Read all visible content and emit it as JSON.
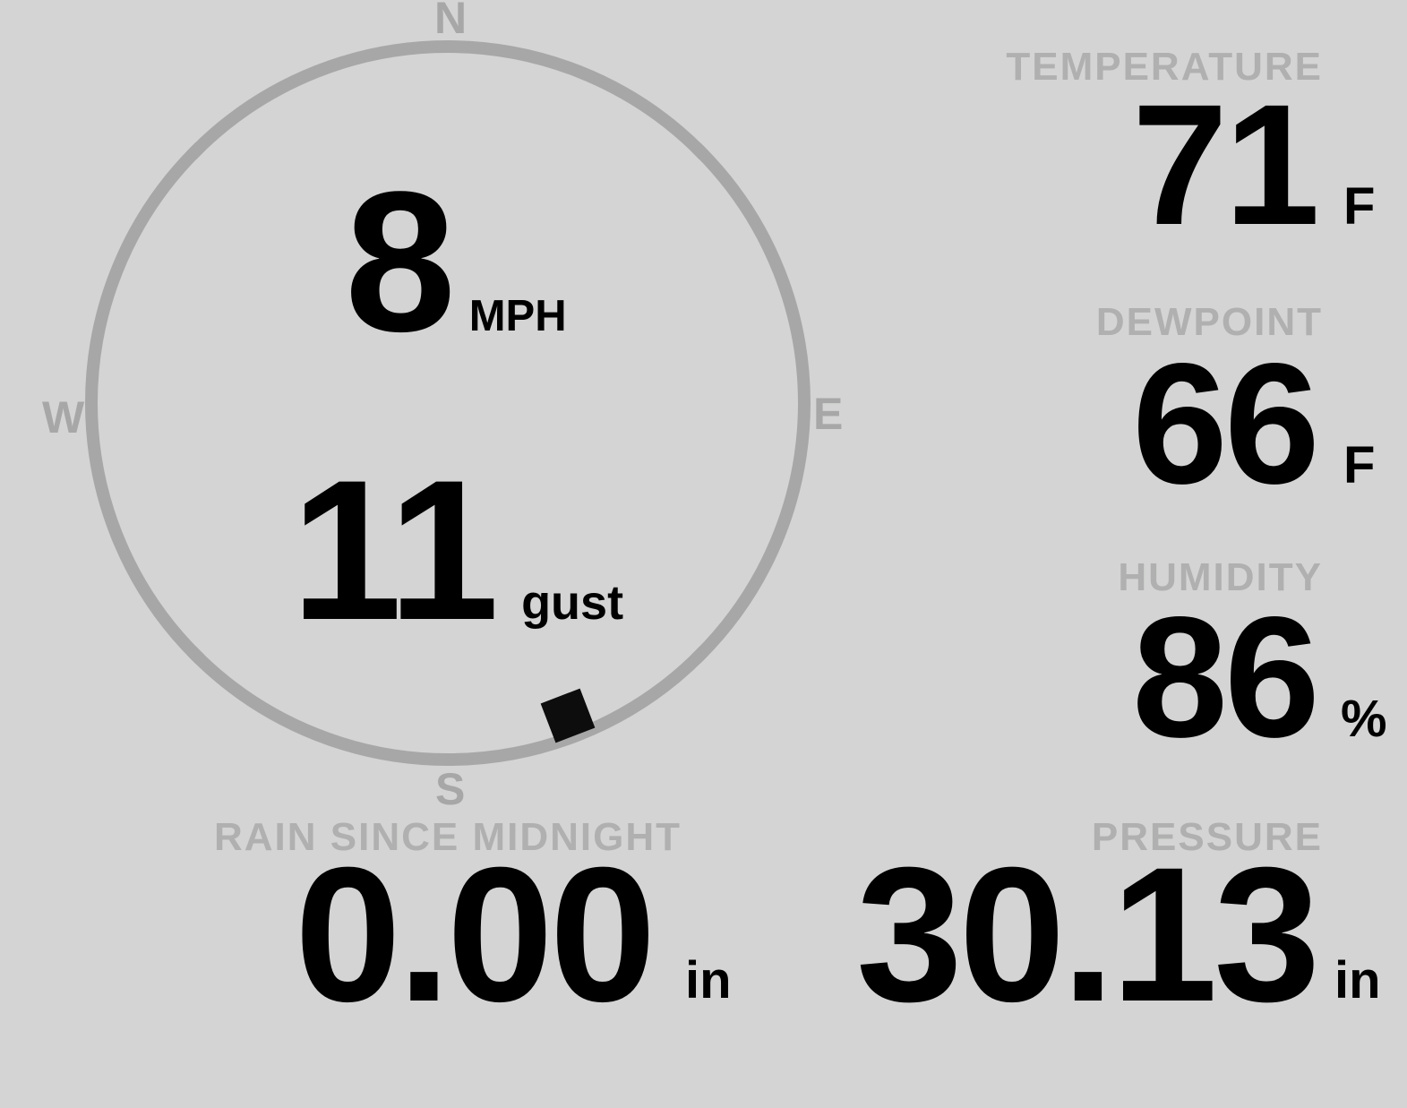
{
  "colors": {
    "background": "#d3d4d3",
    "ring_gray": "#a7a7a7",
    "label_gray": "#b0b0b0",
    "value_black": "#000000",
    "marker_black": "#0d0d0d"
  },
  "compass": {
    "cardinals": {
      "north": "N",
      "east": "E",
      "south": "S",
      "west": "W"
    },
    "wind_speed": "8",
    "wind_speed_unit": "MPH",
    "wind_gust": "11",
    "wind_gust_unit": "gust",
    "wind_direction_deg": 159
  },
  "metrics": {
    "temperature": {
      "label": "TEMPERATURE",
      "value": "71",
      "unit": "F"
    },
    "dewpoint": {
      "label": "DEWPOINT",
      "value": "66",
      "unit": "F"
    },
    "humidity": {
      "label": "HUMIDITY",
      "value": "86",
      "unit": "%"
    },
    "rain": {
      "label": "RAIN SINCE MIDNIGHT",
      "value": "0.00",
      "unit": "in"
    },
    "pressure": {
      "label": "PRESSURE",
      "value": "30.13",
      "unit": "in"
    }
  }
}
